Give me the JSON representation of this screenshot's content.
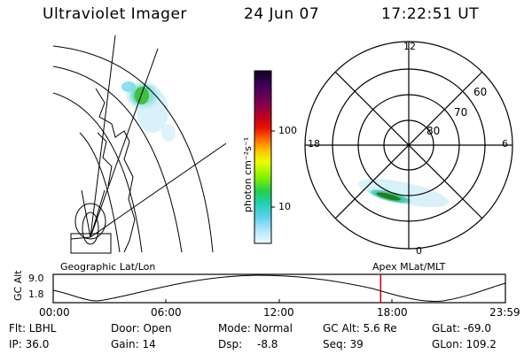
{
  "header": {
    "instrument": "Ultraviolet Imager",
    "date": "24 Jun 07",
    "time": "17:22:51 UT"
  },
  "colorbar": {
    "unit_label": "photon cm⁻²s⁻¹",
    "ticks": [
      "100",
      "10"
    ],
    "colors": [
      "#1a0030",
      "#4a0060",
      "#7a0060",
      "#b00030",
      "#e00000",
      "#ff5000",
      "#ff9000",
      "#ffd000",
      "#e8ff00",
      "#a0ff00",
      "#30e030",
      "#20d0a0",
      "#40c0e0",
      "#a0e0f0",
      "#e8f8ff"
    ]
  },
  "polar_plot": {
    "mlt_labels": [
      "12",
      "18",
      "6",
      "0"
    ],
    "lat_labels": [
      "60",
      "70",
      "80"
    ]
  },
  "map_labels": {
    "left": "Geographic Lat/Lon",
    "right": "Apex MLat/MLT"
  },
  "altitude_plot": {
    "ylabel": "GC Alt",
    "ytick_top": "9.0",
    "ytick_bottom": "1.8",
    "xticks": [
      "00:00",
      "06:00",
      "12:00",
      "18:00",
      "23:59"
    ],
    "marker_time_hours": 17.38,
    "marker_color": "#c00000"
  },
  "info": {
    "row1": [
      "Flt: LBHL",
      "Door: Open",
      "Mode: Normal",
      "GC Alt: 5.6 Re",
      "GLat: -69.0"
    ],
    "row2": [
      "IP: 36.0",
      "Gain: 14",
      "Dsp:",
      "-8.8",
      "Seq: 39",
      "GLon: 109.2"
    ]
  }
}
